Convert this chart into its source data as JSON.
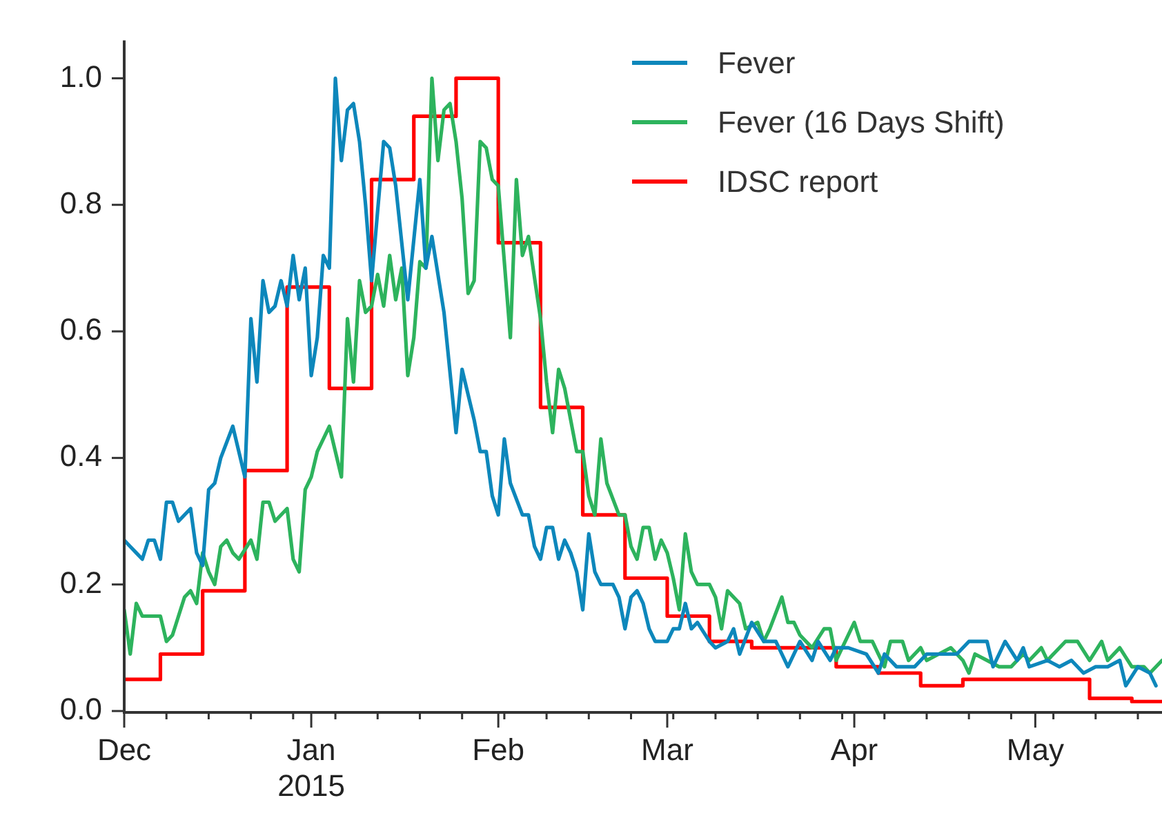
{
  "chart_data": {
    "type": "line",
    "xlim": [
      "2014-12-01",
      "2015-05-22"
    ],
    "xticks": [
      {
        "value": "2014-12-01",
        "label": "Dec"
      },
      {
        "value": "2014-12-08",
        "label": null
      },
      {
        "value": "2014-12-15",
        "label": null
      },
      {
        "value": "2014-12-22",
        "label": null
      },
      {
        "value": "2014-12-29",
        "label": null
      },
      {
        "value": "2015-01-01",
        "label": "Jan\n2015"
      },
      {
        "value": "2015-01-05",
        "label": null
      },
      {
        "value": "2015-01-12",
        "label": null
      },
      {
        "value": "2015-01-19",
        "label": null
      },
      {
        "value": "2015-01-26",
        "label": null
      },
      {
        "value": "2015-02-01",
        "label": "Feb"
      },
      {
        "value": "2015-02-02",
        "label": null
      },
      {
        "value": "2015-02-09",
        "label": null
      },
      {
        "value": "2015-02-16",
        "label": null
      },
      {
        "value": "2015-02-23",
        "label": null
      },
      {
        "value": "2015-03-01",
        "label": "Mar"
      },
      {
        "value": "2015-03-02",
        "label": null
      },
      {
        "value": "2015-03-09",
        "label": null
      },
      {
        "value": "2015-03-16",
        "label": null
      },
      {
        "value": "2015-03-23",
        "label": null
      },
      {
        "value": "2015-03-30",
        "label": null
      },
      {
        "value": "2015-04-01",
        "label": "Apr"
      },
      {
        "value": "2015-04-06",
        "label": null
      },
      {
        "value": "2015-04-13",
        "label": null
      },
      {
        "value": "2015-04-20",
        "label": null
      },
      {
        "value": "2015-04-27",
        "label": null
      },
      {
        "value": "2015-05-01",
        "label": "May"
      },
      {
        "value": "2015-05-04",
        "label": null
      },
      {
        "value": "2015-05-11",
        "label": null
      },
      {
        "value": "2015-05-18",
        "label": null
      }
    ],
    "ylim": [
      0,
      1.06
    ],
    "yticks": [
      {
        "value": 0,
        "label": "0.0"
      },
      {
        "value": 0.2,
        "label": "0.2"
      },
      {
        "value": 0.4,
        "label": "0.4"
      },
      {
        "value": 0.6,
        "label": "0.6"
      },
      {
        "value": 0.8,
        "label": "0.8"
      },
      {
        "value": 1,
        "label": "1.0"
      }
    ],
    "legend": "top right",
    "marker": "none",
    "line_style": "solid",
    "series": [
      {
        "name": "Fever",
        "color": "#0d87bb",
        "x": [
          "2014-12-01",
          "2014-12-02",
          "2014-12-03",
          "2014-12-04",
          "2014-12-05",
          "2014-12-06",
          "2014-12-07",
          "2014-12-08",
          "2014-12-09",
          "2014-12-10",
          "2014-12-12",
          "2014-12-13",
          "2014-12-14",
          "2014-12-15",
          "2014-12-16",
          "2014-12-17",
          "2014-12-19",
          "2014-12-21",
          "2014-12-22",
          "2014-12-23",
          "2014-12-24",
          "2014-12-25",
          "2014-12-26",
          "2014-12-27",
          "2014-12-28",
          "2014-12-29",
          "2014-12-30",
          "2014-12-31",
          "2015-01-01",
          "2015-01-02",
          "2015-01-03",
          "2015-01-04",
          "2015-01-05",
          "2015-01-06",
          "2015-01-07",
          "2015-01-08",
          "2015-01-09",
          "2015-01-10",
          "2015-01-11",
          "2015-01-13",
          "2015-01-14",
          "2015-01-15",
          "2015-01-17",
          "2015-01-19",
          "2015-01-20",
          "2015-01-21",
          "2015-01-23",
          "2015-01-25",
          "2015-01-26",
          "2015-01-28",
          "2015-01-29",
          "2015-01-30",
          "2015-01-31",
          "2015-02-01",
          "2015-02-02",
          "2015-02-03",
          "2015-02-05",
          "2015-02-06",
          "2015-02-07",
          "2015-02-08",
          "2015-02-09",
          "2015-02-10",
          "2015-02-11",
          "2015-02-12",
          "2015-02-13",
          "2015-02-14",
          "2015-02-15",
          "2015-02-16",
          "2015-02-17",
          "2015-02-18",
          "2015-02-20",
          "2015-02-21",
          "2015-02-22",
          "2015-02-23",
          "2015-02-24",
          "2015-02-25",
          "2015-02-26",
          "2015-02-27",
          "2015-03-01",
          "2015-03-02",
          "2015-03-03",
          "2015-03-04",
          "2015-03-05",
          "2015-03-06",
          "2015-03-08",
          "2015-03-09",
          "2015-03-11",
          "2015-03-12",
          "2015-03-13",
          "2015-03-15",
          "2015-03-17",
          "2015-03-19",
          "2015-03-21",
          "2015-03-23",
          "2015-03-25",
          "2015-03-26",
          "2015-03-28",
          "2015-03-29",
          "2015-03-31",
          "2015-04-03",
          "2015-04-05",
          "2015-04-06",
          "2015-04-08",
          "2015-04-11",
          "2015-04-13",
          "2015-04-15",
          "2015-04-17",
          "2015-04-18",
          "2015-04-20",
          "2015-04-21",
          "2015-04-23",
          "2015-04-24",
          "2015-04-25",
          "2015-04-26",
          "2015-04-28",
          "2015-04-29",
          "2015-04-30",
          "2015-05-03",
          "2015-05-05",
          "2015-05-07",
          "2015-05-09",
          "2015-05-11",
          "2015-05-13",
          "2015-05-15",
          "2015-05-16",
          "2015-05-18",
          "2015-05-20",
          "2015-05-21"
        ],
        "values": [
          0.27,
          0.26,
          0.25,
          0.24,
          0.27,
          0.27,
          0.24,
          0.33,
          0.33,
          0.3,
          0.32,
          0.25,
          0.23,
          0.35,
          0.36,
          0.4,
          0.45,
          0.37,
          0.62,
          0.52,
          0.68,
          0.63,
          0.64,
          0.68,
          0.64,
          0.72,
          0.65,
          0.7,
          0.53,
          0.59,
          0.72,
          0.7,
          1.0,
          0.87,
          0.95,
          0.96,
          0.9,
          0.8,
          0.68,
          0.9,
          0.89,
          0.83,
          0.65,
          0.84,
          0.7,
          0.75,
          0.63,
          0.44,
          0.54,
          0.46,
          0.41,
          0.41,
          0.34,
          0.31,
          0.43,
          0.36,
          0.31,
          0.31,
          0.26,
          0.24,
          0.29,
          0.29,
          0.24,
          0.27,
          0.25,
          0.22,
          0.16,
          0.28,
          0.22,
          0.2,
          0.2,
          0.18,
          0.13,
          0.18,
          0.19,
          0.17,
          0.13,
          0.11,
          0.11,
          0.13,
          0.13,
          0.17,
          0.13,
          0.14,
          0.11,
          0.1,
          0.11,
          0.13,
          0.09,
          0.14,
          0.11,
          0.11,
          0.07,
          0.11,
          0.08,
          0.11,
          0.08,
          0.1,
          0.1,
          0.09,
          0.06,
          0.09,
          0.07,
          0.07,
          0.09,
          0.09,
          0.09,
          0.09,
          0.11,
          0.11,
          0.11,
          0.07,
          0.09,
          0.11,
          0.08,
          0.1,
          0.07,
          0.08,
          0.07,
          0.08,
          0.06,
          0.07,
          0.07,
          0.08,
          0.04,
          0.07,
          0.06,
          0.04
        ]
      },
      {
        "name": "Fever (16 Days Shift)",
        "color": "#2db35d",
        "x": [
          "2014-12-01",
          "2014-12-02",
          "2014-12-03",
          "2014-12-04",
          "2014-12-05",
          "2014-12-07",
          "2014-12-08",
          "2014-12-09",
          "2014-12-10",
          "2014-12-11",
          "2014-12-12",
          "2014-12-13",
          "2014-12-14",
          "2014-12-15",
          "2014-12-16",
          "2014-12-17",
          "2014-12-18",
          "2014-12-19",
          "2014-12-20",
          "2014-12-22",
          "2014-12-23",
          "2014-12-24",
          "2014-12-25",
          "2014-12-26",
          "2014-12-28",
          "2014-12-29",
          "2014-12-30",
          "2014-12-31",
          "2015-01-01",
          "2015-01-02",
          "2015-01-04",
          "2015-01-06",
          "2015-01-07",
          "2015-01-08",
          "2015-01-09",
          "2015-01-10",
          "2015-01-11",
          "2015-01-12",
          "2015-01-13",
          "2015-01-14",
          "2015-01-15",
          "2015-01-16",
          "2015-01-17",
          "2015-01-18",
          "2015-01-19",
          "2015-01-20",
          "2015-01-21",
          "2015-01-22",
          "2015-01-23",
          "2015-01-24",
          "2015-01-25",
          "2015-01-26",
          "2015-01-27",
          "2015-01-28",
          "2015-01-29",
          "2015-01-30",
          "2015-01-31",
          "2015-02-01",
          "2015-02-03",
          "2015-02-04",
          "2015-02-05",
          "2015-02-06",
          "2015-02-08",
          "2015-02-09",
          "2015-02-10",
          "2015-02-11",
          "2015-02-12",
          "2015-02-14",
          "2015-02-15",
          "2015-02-16",
          "2015-02-17",
          "2015-02-18",
          "2015-02-19",
          "2015-02-21",
          "2015-02-22",
          "2015-02-23",
          "2015-02-24",
          "2015-02-25",
          "2015-02-26",
          "2015-02-27",
          "2015-02-28",
          "2015-03-01",
          "2015-03-02",
          "2015-03-03",
          "2015-03-04",
          "2015-03-05",
          "2015-03-06",
          "2015-03-08",
          "2015-03-09",
          "2015-03-10",
          "2015-03-11",
          "2015-03-13",
          "2015-03-14",
          "2015-03-16",
          "2015-03-17",
          "2015-03-18",
          "2015-03-20",
          "2015-03-21",
          "2015-03-22",
          "2015-03-23",
          "2015-03-25",
          "2015-03-27",
          "2015-03-28",
          "2015-03-29",
          "2015-04-01",
          "2015-04-02",
          "2015-04-04",
          "2015-04-05",
          "2015-04-06",
          "2015-04-07",
          "2015-04-09",
          "2015-04-10",
          "2015-04-12",
          "2015-04-13",
          "2015-04-15",
          "2015-04-17",
          "2015-04-18",
          "2015-04-19",
          "2015-04-20",
          "2015-04-21",
          "2015-04-23",
          "2015-04-25",
          "2015-04-27",
          "2015-04-29",
          "2015-04-30",
          "2015-05-02",
          "2015-05-03",
          "2015-05-06",
          "2015-05-07",
          "2015-05-08",
          "2015-05-10",
          "2015-05-12",
          "2015-05-13",
          "2015-05-15",
          "2015-05-17",
          "2015-05-19",
          "2015-05-20",
          "2015-05-22"
        ],
        "values": [
          0.16,
          0.09,
          0.17,
          0.15,
          0.15,
          0.15,
          0.11,
          0.12,
          0.15,
          0.18,
          0.19,
          0.17,
          0.25,
          0.22,
          0.2,
          0.26,
          0.27,
          0.25,
          0.24,
          0.27,
          0.24,
          0.33,
          0.33,
          0.3,
          0.32,
          0.24,
          0.22,
          0.35,
          0.37,
          0.41,
          0.45,
          0.37,
          0.62,
          0.52,
          0.68,
          0.63,
          0.64,
          0.69,
          0.64,
          0.72,
          0.65,
          0.7,
          0.53,
          0.59,
          0.71,
          0.7,
          1.0,
          0.87,
          0.95,
          0.96,
          0.9,
          0.81,
          0.66,
          0.68,
          0.9,
          0.89,
          0.84,
          0.83,
          0.59,
          0.84,
          0.72,
          0.75,
          0.62,
          0.52,
          0.44,
          0.54,
          0.51,
          0.41,
          0.41,
          0.34,
          0.31,
          0.43,
          0.36,
          0.31,
          0.31,
          0.26,
          0.24,
          0.29,
          0.29,
          0.24,
          0.27,
          0.25,
          0.21,
          0.16,
          0.28,
          0.22,
          0.2,
          0.2,
          0.18,
          0.13,
          0.19,
          0.17,
          0.13,
          0.14,
          0.11,
          0.13,
          0.18,
          0.14,
          0.14,
          0.12,
          0.1,
          0.13,
          0.13,
          0.08,
          0.14,
          0.11,
          0.11,
          0.09,
          0.07,
          0.11,
          0.11,
          0.08,
          0.1,
          0.08,
          0.09,
          0.1,
          0.09,
          0.08,
          0.06,
          0.09,
          0.08,
          0.07,
          0.07,
          0.09,
          0.08,
          0.1,
          0.08,
          0.11,
          0.11,
          0.11,
          0.08,
          0.11,
          0.08,
          0.1,
          0.07,
          0.07,
          0.06,
          0.08
        ]
      },
      {
        "name": "IDSC report",
        "type": "step",
        "color": "#ff0000",
        "x": [
          "2014-12-01",
          "2014-12-07",
          "2014-12-14",
          "2014-12-21",
          "2014-12-28",
          "2015-01-04",
          "2015-01-11",
          "2015-01-18",
          "2015-01-25",
          "2015-02-01",
          "2015-02-08",
          "2015-02-15",
          "2015-02-22",
          "2015-03-01",
          "2015-03-08",
          "2015-03-15",
          "2015-03-22",
          "2015-03-29",
          "2015-04-05",
          "2015-04-12",
          "2015-04-19",
          "2015-04-26",
          "2015-05-03",
          "2015-05-10",
          "2015-05-17",
          "2015-05-22"
        ],
        "values": [
          0.05,
          0.09,
          0.19,
          0.38,
          0.67,
          0.51,
          0.84,
          0.94,
          1.0,
          0.74,
          0.48,
          0.31,
          0.21,
          0.15,
          0.11,
          0.1,
          0.1,
          0.07,
          0.06,
          0.04,
          0.05,
          0.05,
          0.05,
          0.02,
          0.015,
          0.015
        ]
      }
    ]
  }
}
